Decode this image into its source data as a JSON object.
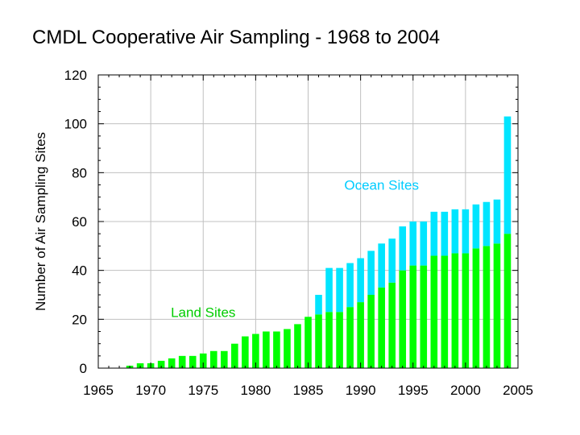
{
  "chart_data": {
    "type": "bar",
    "stacked": true,
    "title": "CMDL Cooperative Air Sampling - 1968 to 2004",
    "xlabel": "",
    "ylabel": "Number of Air Sampling Sites",
    "xlim": [
      1965,
      2005
    ],
    "ylim": [
      0,
      120
    ],
    "grid": true,
    "x_ticks": [
      "1965",
      "1970",
      "1975",
      "1980",
      "1985",
      "1990",
      "1995",
      "2000",
      "2005"
    ],
    "y_ticks": [
      "0",
      "20",
      "40",
      "60",
      "80",
      "100",
      "120"
    ],
    "x": [
      1968,
      1969,
      1970,
      1971,
      1972,
      1973,
      1974,
      1975,
      1976,
      1977,
      1978,
      1979,
      1980,
      1981,
      1982,
      1983,
      1984,
      1985,
      1986,
      1987,
      1988,
      1989,
      1990,
      1991,
      1992,
      1993,
      1994,
      1995,
      1996,
      1997,
      1998,
      1999,
      2000,
      2001,
      2002,
      2003,
      2004
    ],
    "series": [
      {
        "name": "Land Sites",
        "color": "#00ff00",
        "values": [
          1,
          2,
          2,
          3,
          4,
          5,
          5,
          6,
          7,
          7,
          10,
          13,
          14,
          15,
          15,
          16,
          18,
          21,
          22,
          23,
          23,
          25,
          27,
          30,
          33,
          35,
          40,
          42,
          42,
          46,
          46,
          47,
          47,
          49,
          50,
          51,
          55
        ]
      },
      {
        "name": "Ocean Sites",
        "color": "#00e5ff",
        "values": [
          0,
          0,
          0,
          0,
          0,
          0,
          0,
          0,
          0,
          0,
          0,
          0,
          0,
          0,
          0,
          0,
          0,
          0,
          8,
          18,
          18,
          18,
          18,
          18,
          18,
          18,
          18,
          18,
          18,
          18,
          18,
          18,
          18,
          18,
          18,
          18,
          48
        ]
      }
    ],
    "annotations": [
      {
        "text": "Ocean Sites",
        "color": "#00ccff",
        "at": [
          1992,
          73
        ]
      },
      {
        "text": "Land Sites",
        "color": "#00cc00",
        "at": [
          1975,
          21
        ]
      }
    ]
  }
}
